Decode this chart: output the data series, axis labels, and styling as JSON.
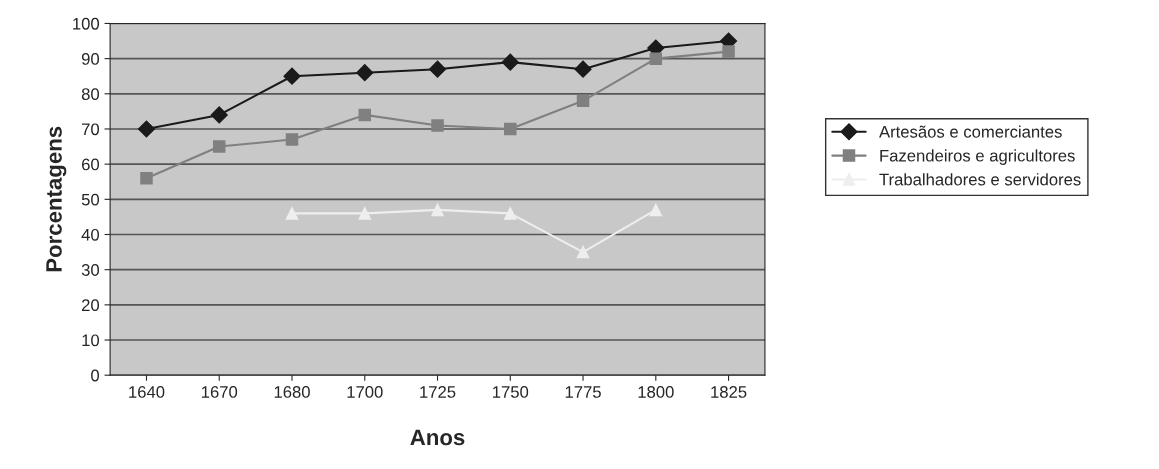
{
  "chart_data": {
    "type": "line",
    "xlabel": "Anos",
    "ylabel": "Porcentagens",
    "categories": [
      "1640",
      "1670",
      "1680",
      "1700",
      "1725",
      "1750",
      "1775",
      "1800",
      "1825"
    ],
    "series": [
      {
        "name": "Artesãos e comerciantes",
        "color": "#1a1a1a",
        "marker": "diamond",
        "values": [
          70,
          74,
          85,
          86,
          87,
          89,
          87,
          93,
          95
        ]
      },
      {
        "name": "Fazendeiros e agricultores",
        "color": "#808080",
        "marker": "square",
        "values": [
          56,
          65,
          67,
          74,
          71,
          70,
          78,
          90,
          92
        ]
      },
      {
        "name": "Trabalhadores e servidores",
        "color": "#eeeeee",
        "marker": "triangle",
        "values": [
          null,
          null,
          46,
          46,
          47,
          46,
          35,
          47,
          null
        ]
      }
    ],
    "ylim": [
      0,
      100
    ],
    "yticks": [
      0,
      10,
      20,
      30,
      40,
      50,
      60,
      70,
      80,
      90,
      100
    ],
    "grid": "y",
    "legend": "right"
  }
}
